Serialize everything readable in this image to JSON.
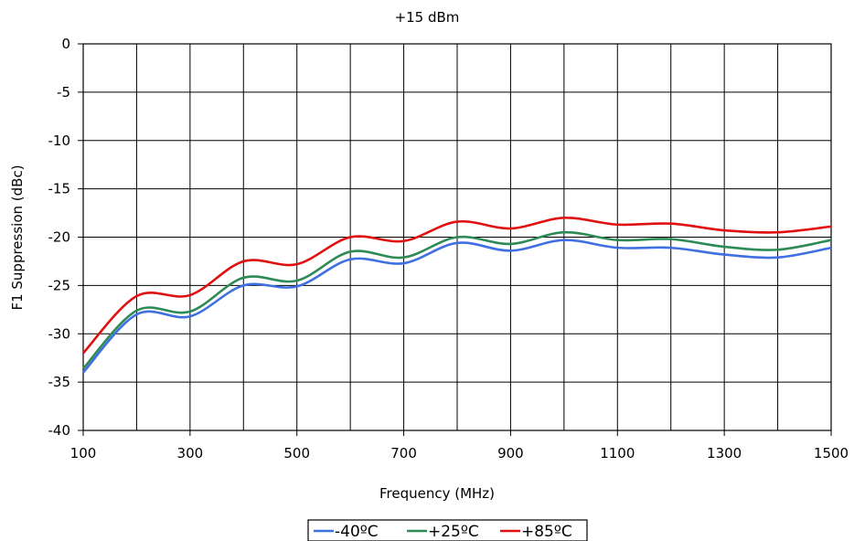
{
  "chart_data": {
    "type": "line",
    "title": "+15 dBm",
    "xlabel": "Frequency (MHz)",
    "ylabel": "F1 Suppression (dBc)",
    "xlim": [
      100,
      1500
    ],
    "ylim": [
      -40,
      0
    ],
    "x_ticks": [
      100,
      300,
      500,
      700,
      900,
      1100,
      1300,
      1500
    ],
    "y_ticks": [
      0,
      -5,
      -10,
      -15,
      -20,
      -25,
      -30,
      -35,
      -40
    ],
    "grid": true,
    "legend_position": "bottom",
    "x": [
      100,
      200,
      300,
      400,
      500,
      600,
      700,
      800,
      900,
      1000,
      1100,
      1200,
      1300,
      1400,
      1500
    ],
    "series": [
      {
        "name": "-40ºC",
        "color": "#3f6fe0",
        "values": [
          -34,
          -28,
          -28.2,
          -25,
          -25.1,
          -22.3,
          -22.7,
          -20.6,
          -21.4,
          -20.3,
          -21.1,
          -21.1,
          -21.8,
          -22.1,
          -21.1
        ]
      },
      {
        "name": "+25ºC",
        "color": "#2e8b57",
        "values": [
          -33.6,
          -27.6,
          -27.7,
          -24.2,
          -24.5,
          -21.5,
          -22.1,
          -20,
          -20.7,
          -19.5,
          -20.3,
          -20.2,
          -21,
          -21.3,
          -20.3
        ]
      },
      {
        "name": "+85ºC",
        "color": "#e01010",
        "values": [
          -32,
          -26.1,
          -26,
          -22.5,
          -22.8,
          -20,
          -20.4,
          -18.4,
          -19.1,
          -18,
          -18.7,
          -18.6,
          -19.3,
          -19.5,
          -18.9
        ]
      }
    ]
  }
}
